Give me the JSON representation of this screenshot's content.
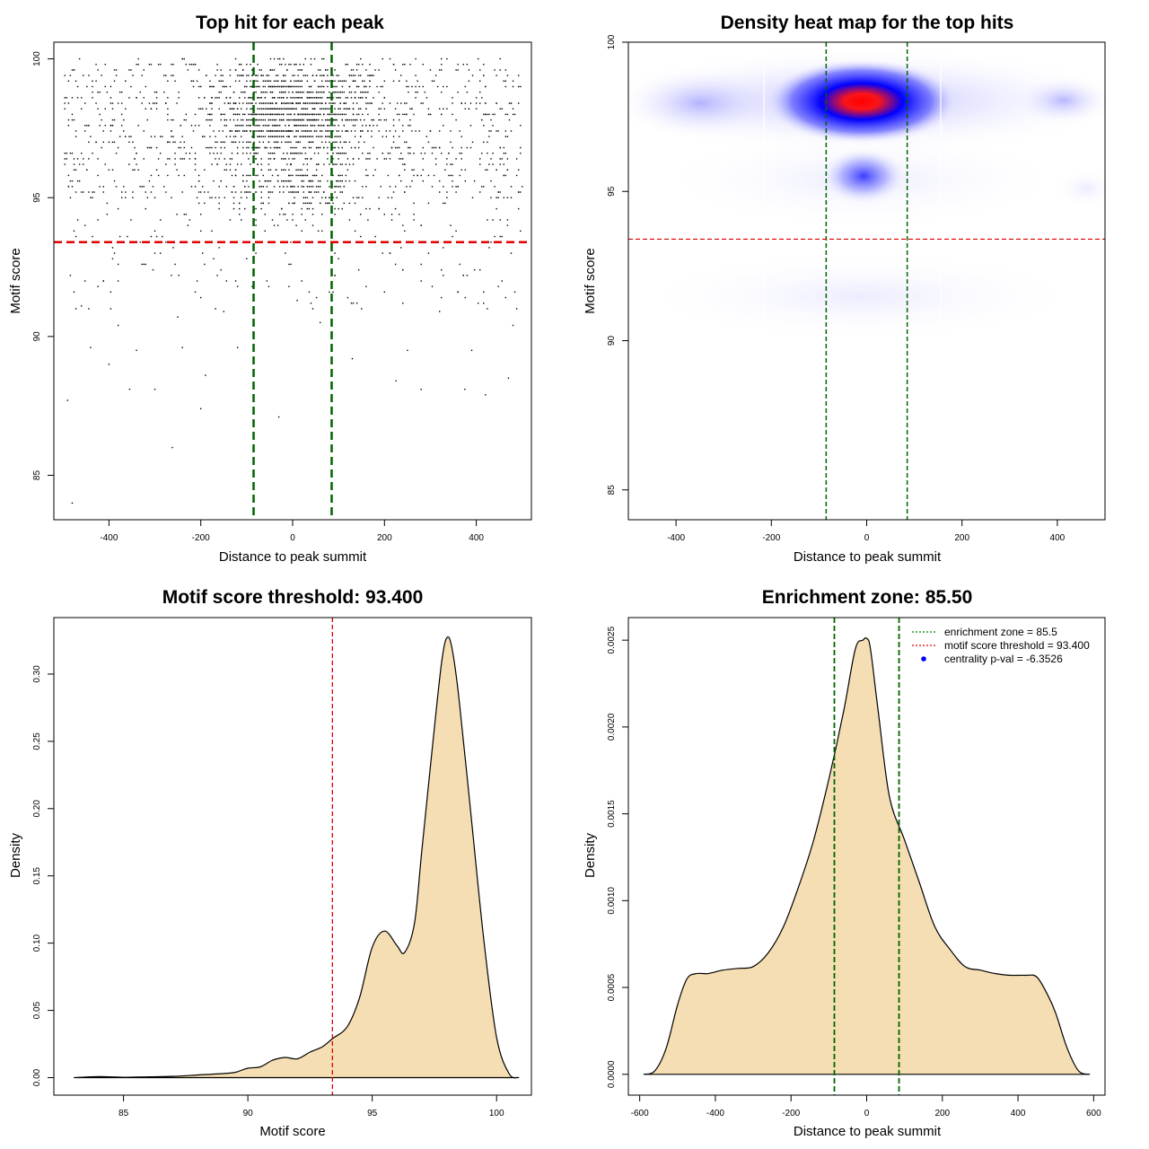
{
  "colors": {
    "ink": "#000000",
    "green_dash": "#006400",
    "red_dash": "#e00000",
    "density_fill": "#f5deb3",
    "heat_low": "#ffffff",
    "heat_mid": "#0000ff",
    "heat_high": "#ff0000"
  },
  "chart_data": [
    {
      "id": "scatter",
      "type": "scatter",
      "title": "Top hit for each peak",
      "xlabel": "Distance to peak summit",
      "ylabel": "Motif score",
      "xlim": [
        -520,
        520
      ],
      "ylim": [
        83.4,
        100.6
      ],
      "xticks": [
        -400,
        -200,
        0,
        200,
        400
      ],
      "yticks": [
        85,
        90,
        95,
        100
      ],
      "vlines": [
        -85,
        85
      ],
      "hline": 93.4,
      "sample_points": [
        [
          -480,
          84.0
        ],
        [
          -262,
          86.0
        ],
        [
          -30,
          87.1
        ],
        [
          -200,
          87.4
        ],
        [
          -490,
          87.7
        ],
        [
          -355,
          88.1
        ],
        [
          -300,
          88.1
        ],
        [
          375,
          88.1
        ],
        [
          420,
          87.9
        ],
        [
          225,
          88.4
        ],
        [
          280,
          88.1
        ],
        [
          470,
          88.5
        ],
        [
          -190,
          88.6
        ],
        [
          -400,
          89.0
        ],
        [
          -120,
          89.6
        ],
        [
          -440,
          89.6
        ],
        [
          -340,
          89.5
        ],
        [
          -240,
          89.6
        ],
        [
          390,
          89.5
        ],
        [
          250,
          89.5
        ],
        [
          130,
          89.2
        ],
        [
          480,
          90.4
        ],
        [
          -460,
          91.1
        ],
        [
          -380,
          90.4
        ],
        [
          10,
          91.3
        ],
        [
          150,
          91.0
        ],
        [
          320,
          90.9
        ],
        [
          -250,
          90.7
        ],
        [
          60,
          90.5
        ],
        [
          -150,
          90.9
        ]
      ]
    },
    {
      "id": "heatmap",
      "type": "heatmap",
      "title": "Density heat map for the top hits",
      "xlabel": "Distance to peak summit",
      "ylabel": "Motif score",
      "xlim": [
        -500,
        500
      ],
      "ylim": [
        84,
        100
      ],
      "xticks": [
        -400,
        -200,
        0,
        200,
        400
      ],
      "yticks": [
        85,
        90,
        95,
        100
      ],
      "vlines": [
        -85,
        85
      ],
      "hline": 93.4,
      "peak": {
        "x": -5,
        "y": 98.0
      }
    },
    {
      "id": "score-density",
      "type": "area",
      "title": "Motif score threshold: 93.400",
      "xlabel": "Motif score",
      "ylabel": "Density",
      "xlim": [
        82.2,
        101.4
      ],
      "ylim": [
        -0.013,
        0.342
      ],
      "xticks": [
        85,
        90,
        95,
        100
      ],
      "yticks": [
        0.0,
        0.05,
        0.1,
        0.15,
        0.2,
        0.25,
        0.3
      ],
      "ytick_labels": [
        "0.00",
        "0.05",
        "0.10",
        "0.15",
        "0.20",
        "0.25",
        "0.30"
      ],
      "vline": 93.4,
      "x": [
        83.0,
        84.0,
        85.0,
        86.0,
        87.0,
        88.0,
        89.0,
        89.5,
        90.0,
        90.5,
        91.0,
        91.5,
        92.0,
        92.5,
        93.0,
        93.4,
        94.0,
        94.5,
        95.0,
        95.5,
        96.0,
        96.3,
        96.7,
        97.0,
        97.5,
        97.8,
        98.0,
        98.2,
        98.5,
        99.0,
        99.5,
        100.0,
        100.5,
        100.9
      ],
      "y": [
        0.0,
        0.0008,
        0.0003,
        0.0006,
        0.001,
        0.002,
        0.003,
        0.004,
        0.007,
        0.008,
        0.013,
        0.015,
        0.014,
        0.019,
        0.023,
        0.029,
        0.038,
        0.06,
        0.097,
        0.109,
        0.098,
        0.093,
        0.115,
        0.17,
        0.26,
        0.31,
        0.327,
        0.32,
        0.28,
        0.19,
        0.1,
        0.03,
        0.003,
        0.0
      ]
    },
    {
      "id": "distance-density",
      "type": "area",
      "title": "Enrichment zone: 85.50",
      "xlabel": "Distance to peak summit",
      "ylabel": "Density",
      "xlim": [
        -630,
        630
      ],
      "ylim": [
        -0.00012,
        0.00263
      ],
      "xticks": [
        -600,
        -400,
        -200,
        0,
        200,
        400,
        600
      ],
      "yticks": [
        0.0,
        0.0005,
        0.001,
        0.0015,
        0.002,
        0.0025
      ],
      "ytick_labels": [
        "0.0000",
        "0.0005",
        "0.0010",
        "0.0015",
        "0.0020",
        "0.0025"
      ],
      "vlines": [
        -85.5,
        85.5
      ],
      "x": [
        -590,
        -560,
        -530,
        -500,
        -475,
        -450,
        -420,
        -380,
        -340,
        -300,
        -260,
        -220,
        -180,
        -140,
        -100,
        -60,
        -30,
        -10,
        0,
        10,
        30,
        60,
        100,
        140,
        180,
        220,
        260,
        300,
        340,
        380,
        420,
        450,
        480,
        500,
        530,
        560,
        590
      ],
      "y": [
        0.0,
        2e-05,
        0.00015,
        0.0004,
        0.00055,
        0.00058,
        0.00058,
        0.0006,
        0.00061,
        0.00062,
        0.0007,
        0.00085,
        0.00108,
        0.00135,
        0.0017,
        0.0021,
        0.00245,
        0.0025,
        0.00251,
        0.00245,
        0.0021,
        0.0016,
        0.00135,
        0.0011,
        0.00085,
        0.00072,
        0.00062,
        0.0006,
        0.00058,
        0.00057,
        0.00057,
        0.00056,
        0.00045,
        0.00035,
        0.00015,
        2e-05,
        0.0
      ],
      "legend": [
        {
          "label": "enrichment zone = 85.5",
          "style": "dotted",
          "color": "#008000"
        },
        {
          "label": "motif score threshold = 93.400",
          "style": "dotted",
          "color": "#e00000"
        },
        {
          "label": "centrality p-val = -6.3526",
          "style": "point",
          "color": "#0000ff"
        }
      ]
    }
  ]
}
